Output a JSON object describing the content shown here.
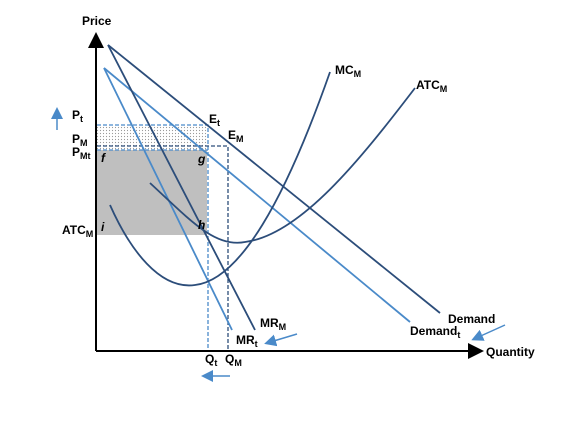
{
  "axes": {
    "y": "Price",
    "x": "Quantity"
  },
  "curves": {
    "mc": {
      "main": "MC",
      "sub": "M"
    },
    "atc": {
      "main": "ATC",
      "sub": "M"
    },
    "demand": "Demand",
    "demand_t": {
      "main": "Demand",
      "sub": "t"
    },
    "mr_m": {
      "main": "MR",
      "sub": "M"
    },
    "mr_t": {
      "main": "MR",
      "sub": "t"
    }
  },
  "points": {
    "e_t": {
      "main": "E",
      "sub": "t"
    },
    "e_m": {
      "main": "E",
      "sub": "M"
    },
    "f": "f",
    "g": "g",
    "h": "h",
    "i": "i"
  },
  "prices": {
    "p_t": {
      "main": "P",
      "sub": "t"
    },
    "p_m": {
      "main": "P",
      "sub": "M"
    },
    "p_mt": {
      "main": "P",
      "sub": "Mt"
    },
    "atc_m": {
      "main": "ATC",
      "sub": "M"
    }
  },
  "quantities": {
    "q_t": {
      "main": "Q",
      "sub": "t"
    },
    "q_m": {
      "main": "Q",
      "sub": "M"
    }
  }
}
